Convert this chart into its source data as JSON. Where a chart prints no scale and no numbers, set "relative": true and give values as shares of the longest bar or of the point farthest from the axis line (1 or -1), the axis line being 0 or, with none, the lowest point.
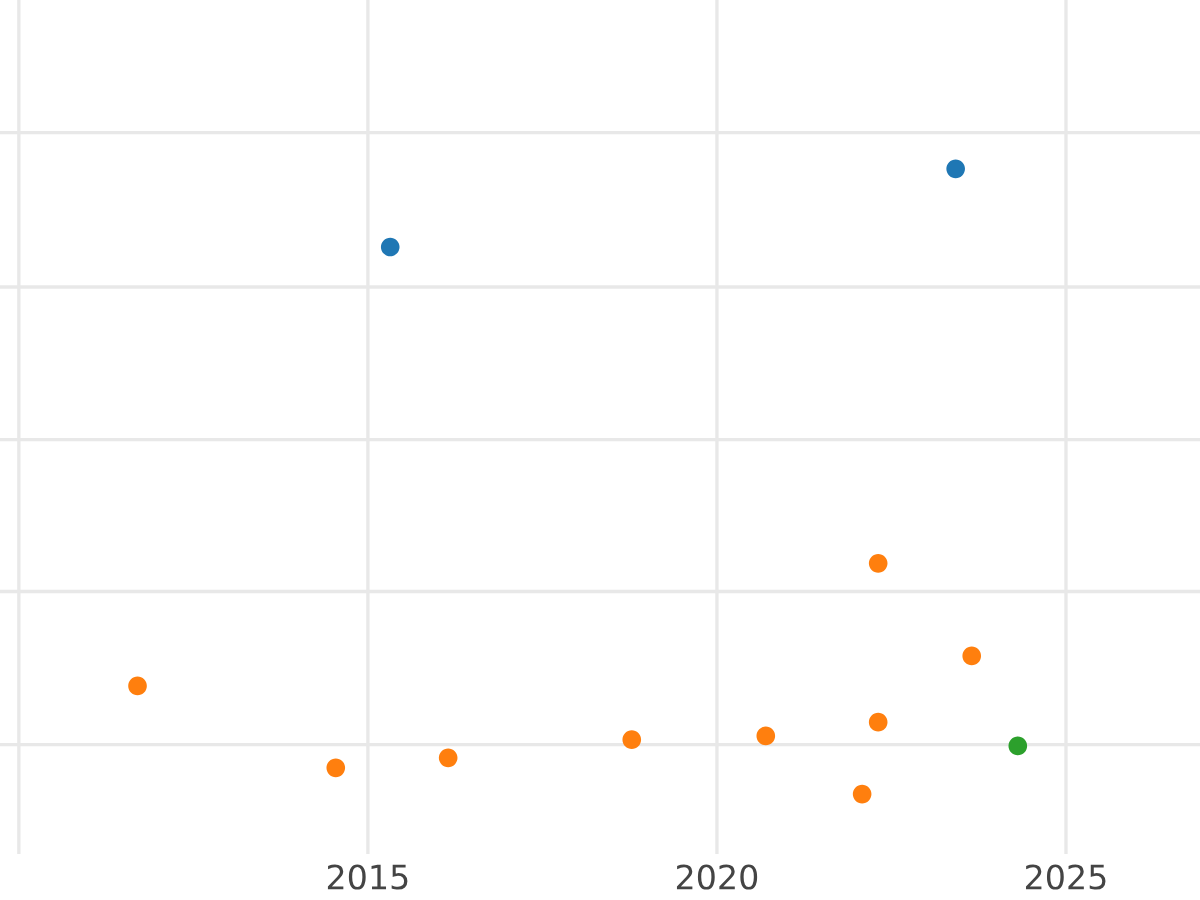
{
  "chart_data": {
    "type": "scatter",
    "relative": true,
    "grid": true,
    "marker": "circle",
    "xlim": [
      2009.73,
      2026.92
    ],
    "xticks": [
      {
        "value": 2010,
        "label": null
      },
      2015,
      2020,
      2025
    ],
    "series": [
      {
        "color": "#1f77b4",
        "x": [
          2015.32,
          2023.42
        ],
        "values": [
          0.875,
          1
        ]
      },
      {
        "color": "#ff7f0e",
        "x": [
          2011.7,
          2014.54,
          2016.15,
          2018.78,
          2020.7,
          2022.31,
          2023.65,
          2022.31,
          2022.08
        ],
        "values": [
          0.173,
          0.042,
          0.058,
          0.087,
          0.093,
          0.369,
          0.221,
          0.115,
          0
        ]
      },
      {
        "color": "#2ca02c",
        "x": [
          2024.31
        ],
        "values": [
          0.077
        ]
      }
    ]
  }
}
